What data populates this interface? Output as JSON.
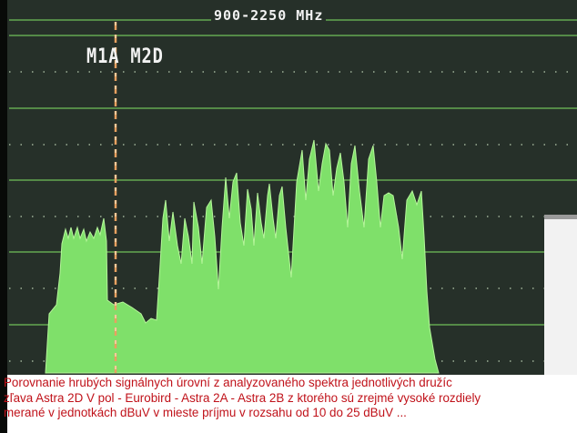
{
  "screen": {
    "range_label": "900-2250 MHz",
    "marker_label": "M1A M2D",
    "colors": {
      "background": "#263029",
      "trace": "#7fe06a",
      "grid": "#6fbf5a",
      "marker": "#e8a060"
    }
  },
  "caption": {
    "lines": [
      "Porovnanie hrubých signálnych úrovní z analyzovaného spektra  jednotlivých družíc",
      "zľava Astra 2D V pol  - Eurobird - Astra 2A - Astra 2B z ktorého sú zrejmé vysoké rozdiely",
      "merané v jednotkách dBuV  v mieste príjmu v rozsahu od 10 do 25 dBuV ..."
    ],
    "color": "#c0121a"
  }
}
